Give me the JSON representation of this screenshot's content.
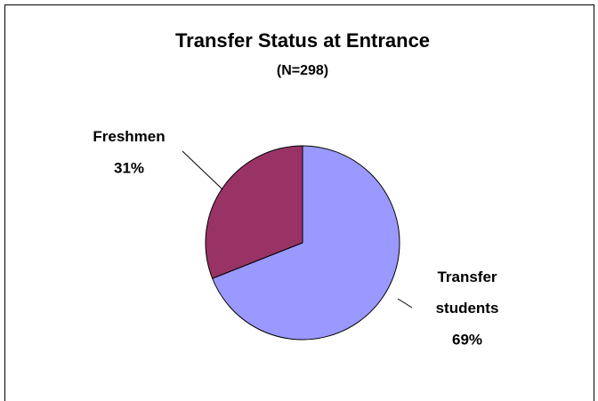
{
  "chart_data": {
    "type": "pie",
    "title": "Transfer Status at Entrance",
    "subtitle": "(N=298)",
    "categories": [
      "Transfer students",
      "Freshmen"
    ],
    "values": [
      69,
      31
    ],
    "value_labels": [
      "69%",
      "31%"
    ],
    "colors": [
      "#9999ff",
      "#993366"
    ]
  }
}
